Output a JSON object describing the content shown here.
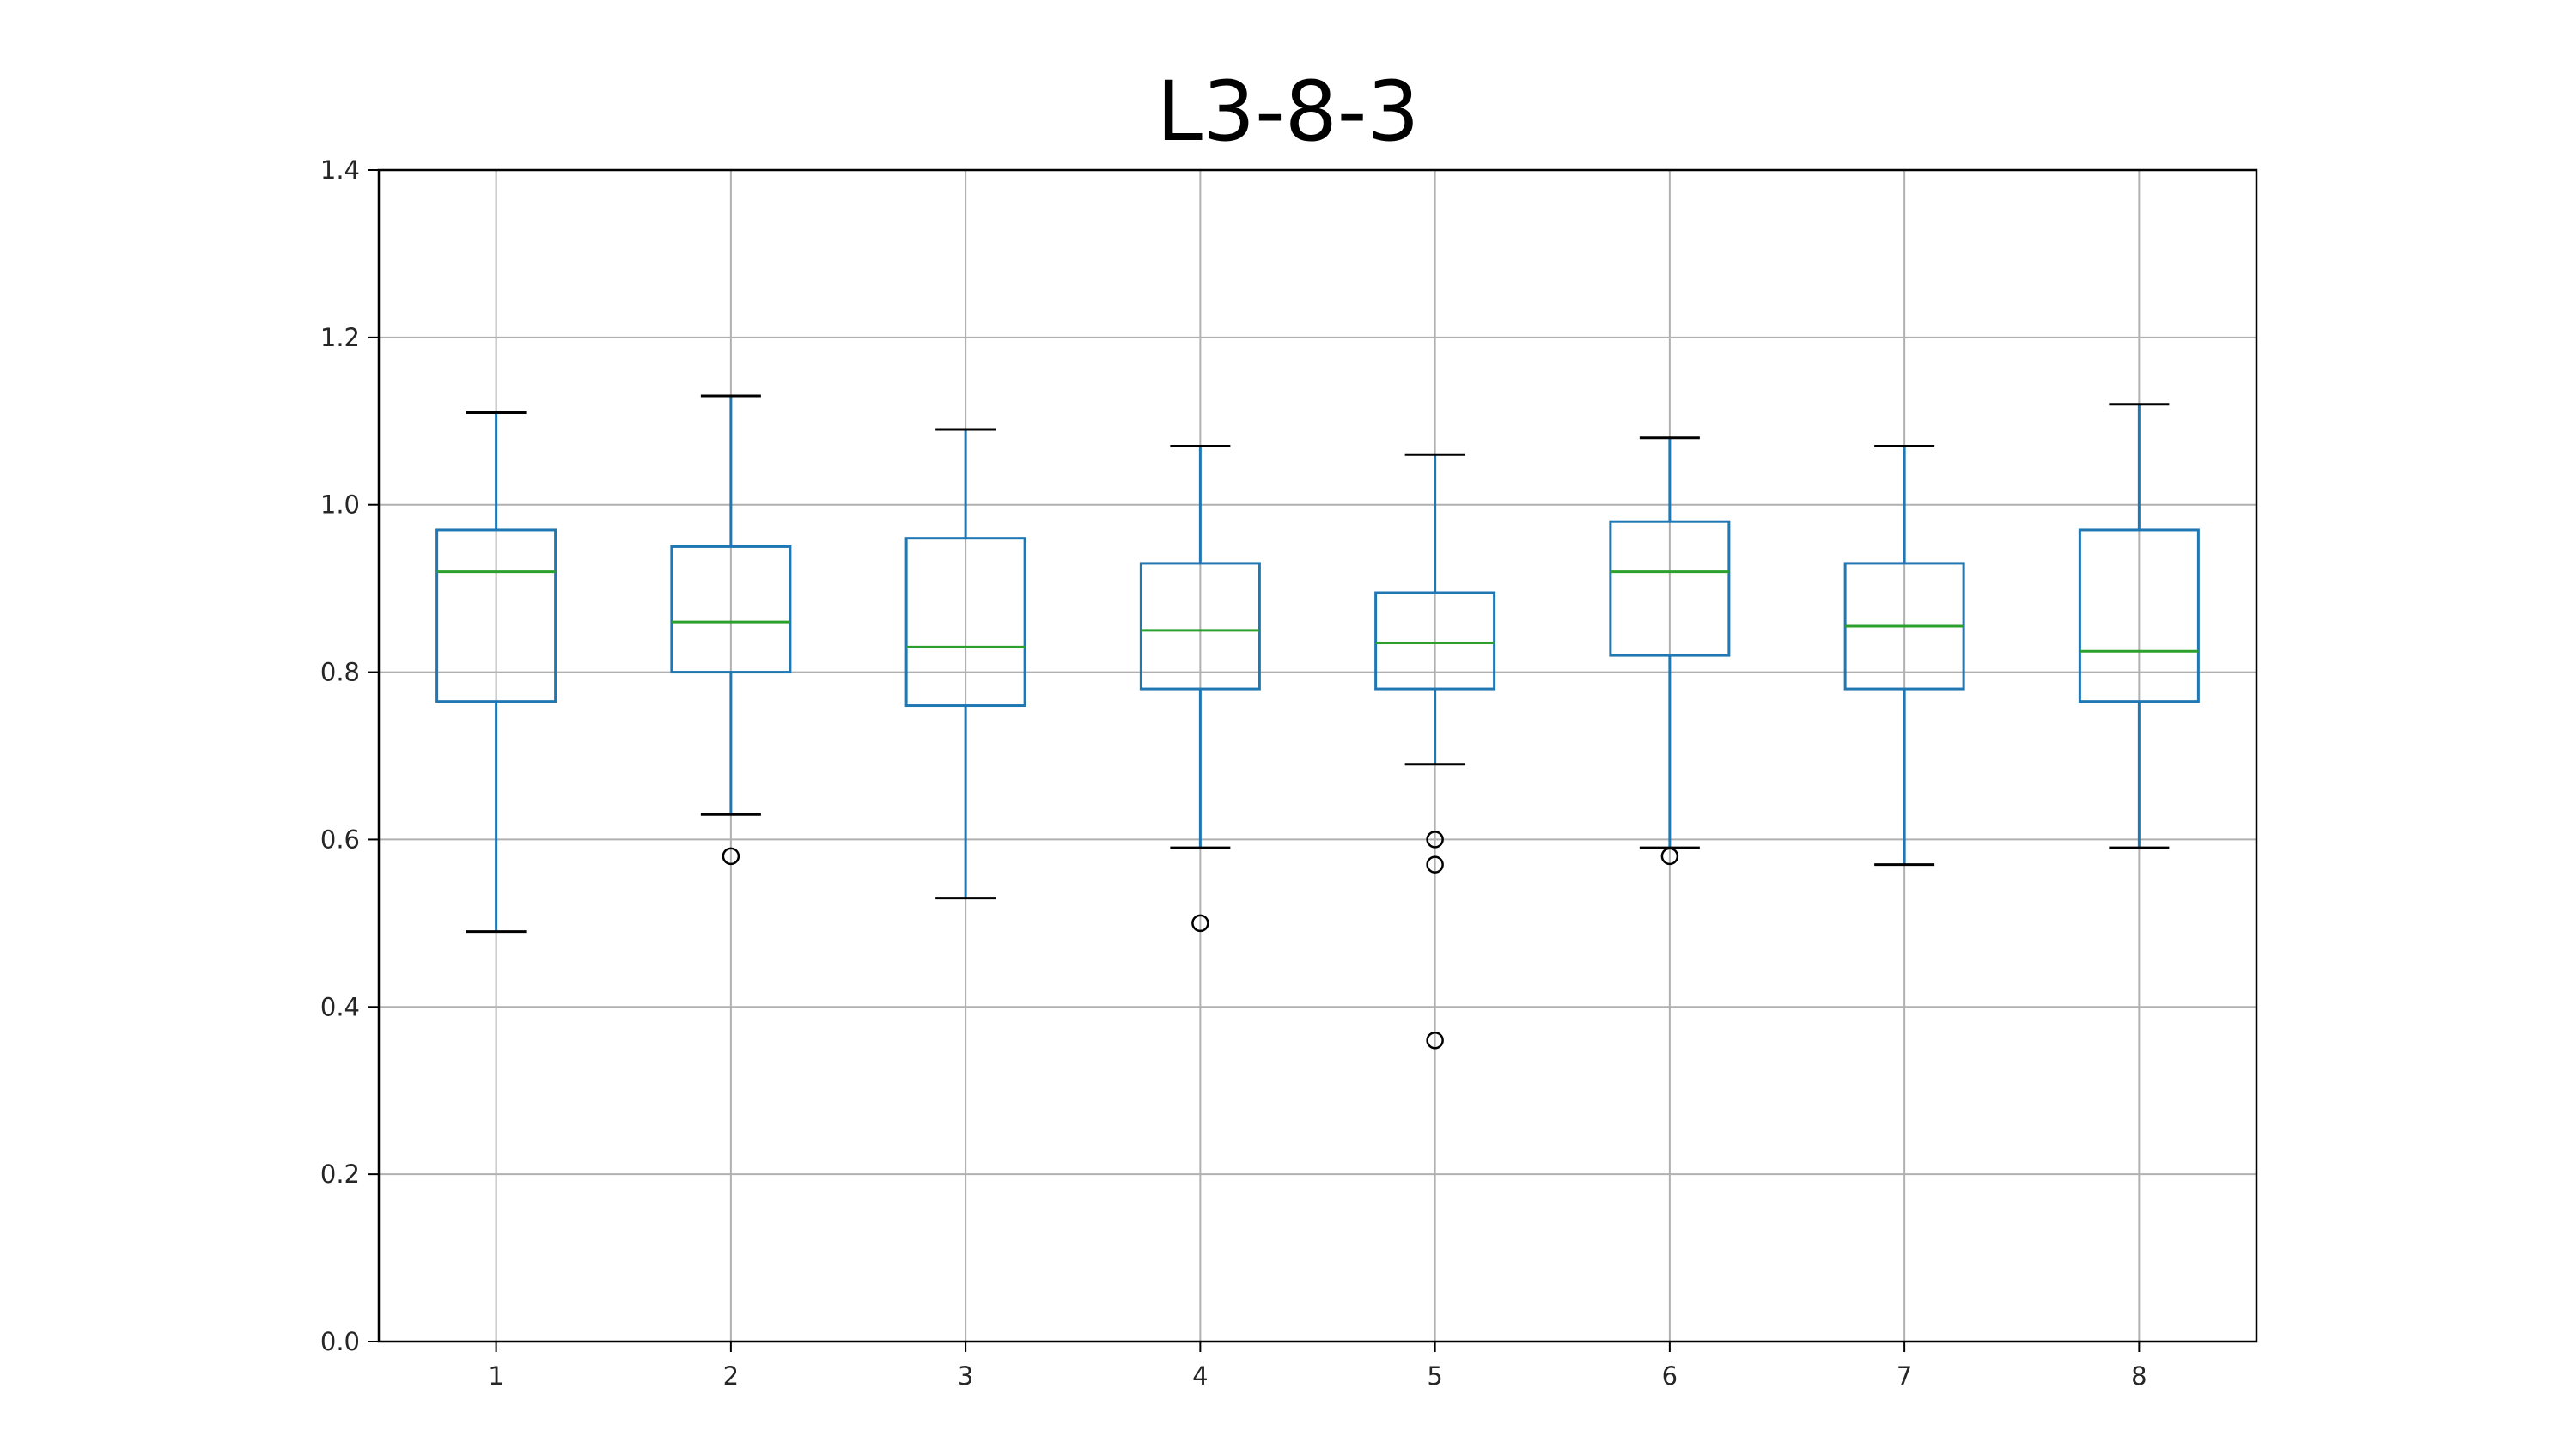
{
  "chart_data": {
    "type": "box",
    "title": "L3-8-3",
    "xlabel": "",
    "ylabel": "",
    "ylim": [
      0.0,
      1.4
    ],
    "yticks": [
      "0.0",
      "0.2",
      "0.4",
      "0.6",
      "0.8",
      "1.0",
      "1.2",
      "1.4"
    ],
    "grid": true,
    "categories": [
      "1",
      "2",
      "3",
      "4",
      "5",
      "6",
      "7",
      "8"
    ],
    "boxes": [
      {
        "category": "1",
        "whisker_low": 0.49,
        "q1": 0.765,
        "median": 0.92,
        "q3": 0.97,
        "whisker_high": 1.11,
        "outliers": []
      },
      {
        "category": "2",
        "whisker_low": 0.63,
        "q1": 0.8,
        "median": 0.86,
        "q3": 0.95,
        "whisker_high": 1.13,
        "outliers": [
          0.58
        ]
      },
      {
        "category": "3",
        "whisker_low": 0.53,
        "q1": 0.76,
        "median": 0.83,
        "q3": 0.96,
        "whisker_high": 1.09,
        "outliers": []
      },
      {
        "category": "4",
        "whisker_low": 0.59,
        "q1": 0.78,
        "median": 0.85,
        "q3": 0.93,
        "whisker_high": 1.07,
        "outliers": [
          0.5
        ]
      },
      {
        "category": "5",
        "whisker_low": 0.69,
        "q1": 0.78,
        "median": 0.835,
        "q3": 0.895,
        "whisker_high": 1.06,
        "outliers": [
          0.6,
          0.57,
          0.36
        ]
      },
      {
        "category": "6",
        "whisker_low": 0.59,
        "q1": 0.82,
        "median": 0.92,
        "q3": 0.98,
        "whisker_high": 1.08,
        "outliers": [
          0.58
        ]
      },
      {
        "category": "7",
        "whisker_low": 0.57,
        "q1": 0.78,
        "median": 0.855,
        "q3": 0.93,
        "whisker_high": 1.07,
        "outliers": []
      },
      {
        "category": "8",
        "whisker_low": 0.59,
        "q1": 0.765,
        "median": 0.825,
        "q3": 0.97,
        "whisker_high": 1.12,
        "outliers": []
      }
    ],
    "colors": {
      "box": "#1f77b4",
      "median": "#2ca02c",
      "caps": "#000000",
      "grid": "#b0b0b0",
      "axes": "#000000",
      "outlier": "#000000"
    }
  }
}
